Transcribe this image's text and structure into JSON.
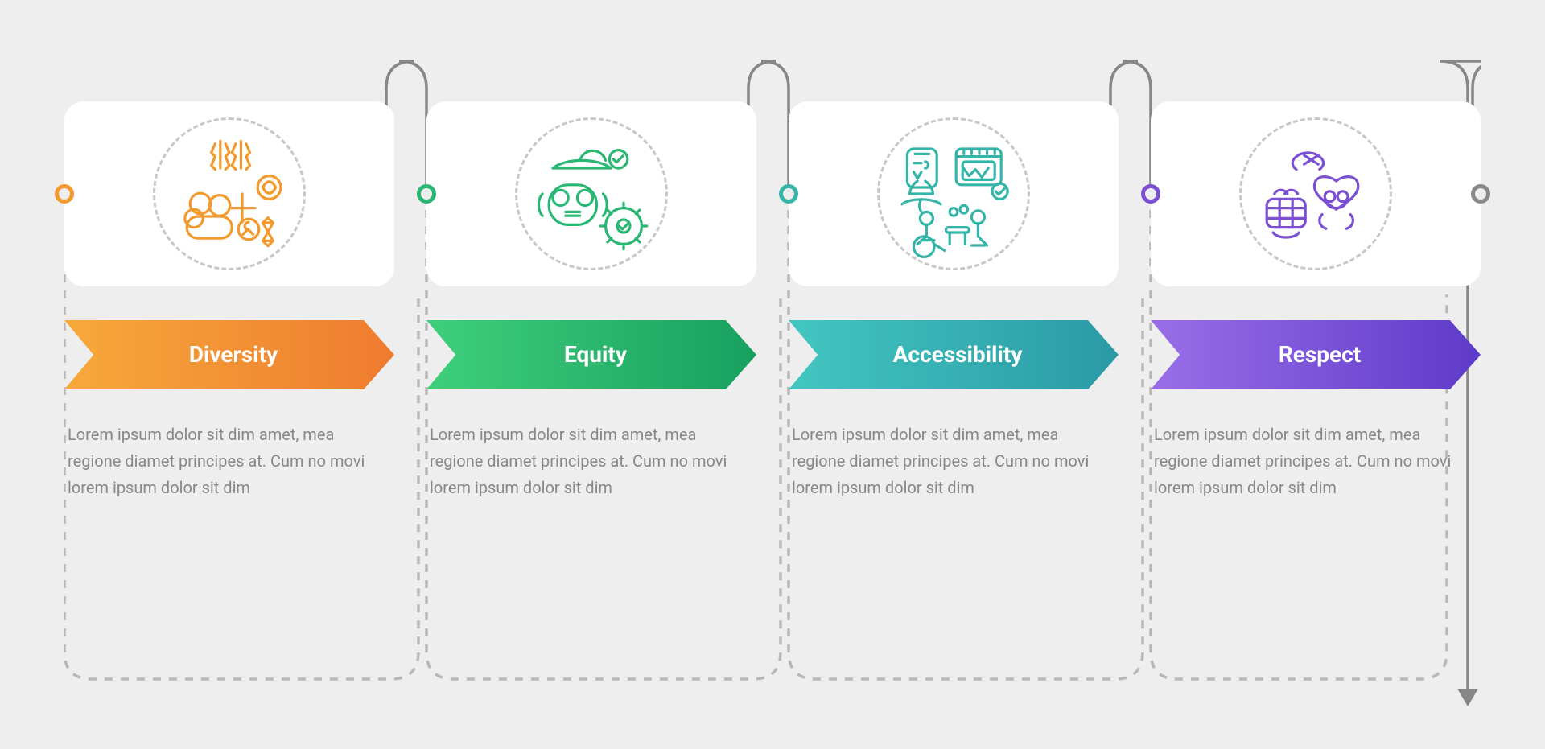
{
  "type": "process-infographic",
  "background_color": "#eeeeee",
  "card_background": "#ffffff",
  "card_radius": 24,
  "connector_color": "#878787",
  "connector_dash_color": "#b8b8b8",
  "icon_dashed_circle_color": "#c8c8c8",
  "desc_color": "#888888",
  "desc_fontsize": 20,
  "label_fontsize": 28,
  "label_color": "#ffffff",
  "end_dot_border": "#888888",
  "steps": [
    {
      "label": "Diversity",
      "description": "Lorem ipsum dolor sit dim amet, mea regione diamet principes at. Cum no movi lorem ipsum dolor sit dim",
      "accent": "#f29a2e",
      "grad_a": "#f6a93b",
      "grad_b": "#ef7b2f",
      "icon": "diversity"
    },
    {
      "label": "Equity",
      "description": "Lorem ipsum dolor sit dim amet, mea regione diamet principes at. Cum no movi lorem ipsum dolor sit dim",
      "accent": "#2ab673",
      "grad_a": "#3fcf7b",
      "grad_b": "#18a05f",
      "icon": "equity"
    },
    {
      "label": "Accessibility",
      "description": "Lorem ipsum dolor sit dim amet, mea regione diamet principes at. Cum no movi lorem ipsum dolor sit dim",
      "accent": "#34b5a8",
      "grad_a": "#43c6c0",
      "grad_b": "#2a9aa6",
      "icon": "accessibility"
    },
    {
      "label": "Respect",
      "description": "Lorem ipsum dolor sit dim amet, mea regione diamet principes at. Cum no movi lorem ipsum dolor sit dim",
      "accent": "#7b4fd2",
      "grad_a": "#9a6ee8",
      "grad_b": "#5e3ac9",
      "icon": "respect"
    }
  ]
}
